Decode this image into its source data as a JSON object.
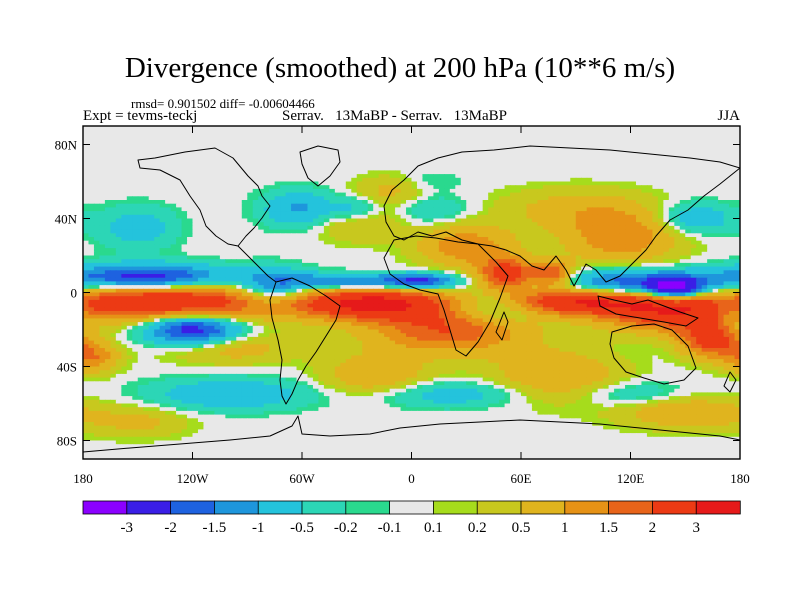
{
  "title": "Divergence (smoothed) at 200 hPa (10**6 m/s)",
  "stats_text": "rmsd= 0.901502 diff= -0.00604466",
  "expt_text": "Expt = tevms-teckj",
  "case_text": "Serrav.   13MaBP - Serrav.   13MaBP",
  "season": "JJA",
  "colors": {
    "palette": [
      "#8b00ff",
      "#3a1ee6",
      "#1e62e0",
      "#1e96dc",
      "#24c3dc",
      "#2cd6b6",
      "#2ad98e",
      "#e8e8e8",
      "#a6dc1c",
      "#c8c81e",
      "#e0b41e",
      "#e69216",
      "#e8641a",
      "#ec3a14",
      "#e61a1a"
    ],
    "coast": "#000000",
    "frame": "#000000"
  },
  "chart_data": {
    "type": "heatmap",
    "title": "Divergence (smoothed) at 200 hPa (10**6 m/s)",
    "variable": "200 hPa divergence difference (smoothed)",
    "units": "10**6 m/s",
    "x_axis": {
      "range": [
        -180,
        180
      ],
      "ticks": [
        -180,
        -120,
        -60,
        0,
        60,
        120,
        180
      ],
      "tick_labels": [
        "180",
        "120W",
        "60W",
        "0",
        "60E",
        "120E",
        "180"
      ]
    },
    "y_axis": {
      "range": [
        -90,
        90
      ],
      "ticks": [
        80,
        40,
        0,
        -40,
        -80
      ],
      "tick_labels": [
        "80N",
        "40N",
        "0",
        "40S",
        "80S"
      ]
    },
    "colorbar": {
      "levels": [
        -3,
        -2,
        -1.5,
        -1,
        -0.5,
        -0.2,
        -0.1,
        0.1,
        0.2,
        0.5,
        1,
        1.5,
        2,
        3
      ],
      "labels": [
        "-3",
        "-2",
        "-1.5",
        "-1",
        "-0.5",
        "-0.2",
        "-0.1",
        "0.1",
        "0.2",
        "0.5",
        "1",
        "1.5",
        "2",
        "3"
      ]
    },
    "features": [
      {
        "lon": -140,
        "lat": -5,
        "value": 3.0,
        "sigma_lon": 55,
        "sigma_lat": 7
      },
      {
        "lon": -20,
        "lat": -6,
        "value": 3.0,
        "sigma_lon": 30,
        "sigma_lat": 6
      },
      {
        "lon": 20,
        "lat": -20,
        "value": 2.0,
        "sigma_lon": 30,
        "sigma_lat": 9
      },
      {
        "lon": 90,
        "lat": -5,
        "value": 2.8,
        "sigma_lon": 30,
        "sigma_lat": 5
      },
      {
        "lon": 140,
        "lat": -12,
        "value": 2.0,
        "sigma_lon": 25,
        "sigma_lat": 7
      },
      {
        "lon": 165,
        "lat": -25,
        "value": 2.5,
        "sigma_lon": 12,
        "sigma_lat": 7
      },
      {
        "lon": 52,
        "lat": 10,
        "value": 2.6,
        "sigma_lon": 10,
        "sigma_lat": 6
      },
      {
        "lon": 77,
        "lat": 10,
        "value": 2.0,
        "sigma_lon": 8,
        "sigma_lat": 5
      },
      {
        "lon": 30,
        "lat": 25,
        "value": 1.4,
        "sigma_lon": 18,
        "sigma_lat": 8
      },
      {
        "lon": 115,
        "lat": 30,
        "value": 1.4,
        "sigma_lon": 22,
        "sigma_lat": 10
      },
      {
        "lon": 90,
        "lat": 45,
        "value": 0.7,
        "sigma_lon": 30,
        "sigma_lat": 8
      },
      {
        "lon": -30,
        "lat": 40,
        "value": 0.8,
        "sigma_lon": 18,
        "sigma_lat": 8
      },
      {
        "lon": -10,
        "lat": 55,
        "value": 0.6,
        "sigma_lon": 15,
        "sigma_lat": 6
      },
      {
        "lon": -100,
        "lat": -30,
        "value": 0.8,
        "sigma_lon": 25,
        "sigma_lat": 6
      },
      {
        "lon": -175,
        "lat": -35,
        "value": 1.4,
        "sigma_lon": 10,
        "sigma_lat": 6
      },
      {
        "lon": -20,
        "lat": -45,
        "value": 1.0,
        "sigma_lon": 20,
        "sigma_lat": 8
      },
      {
        "lon": 80,
        "lat": -45,
        "value": 1.0,
        "sigma_lon": 25,
        "sigma_lat": 10
      },
      {
        "lon": 150,
        "lat": -65,
        "value": 1.0,
        "sigma_lon": 25,
        "sigma_lat": 6
      },
      {
        "lon": -150,
        "lat": -70,
        "value": 0.6,
        "sigma_lon": 20,
        "sigma_lat": 6
      },
      {
        "lon": -145,
        "lat": 8,
        "value": -2.6,
        "sigma_lon": 30,
        "sigma_lat": 5
      },
      {
        "lon": -120,
        "lat": -20,
        "value": -2.6,
        "sigma_lon": 18,
        "sigma_lat": 6
      },
      {
        "lon": -75,
        "lat": 2,
        "value": -1.8,
        "sigma_lon": 15,
        "sigma_lat": 7
      },
      {
        "lon": -35,
        "lat": 6,
        "value": -1.8,
        "sigma_lon": 22,
        "sigma_lat": 3
      },
      {
        "lon": 5,
        "lat": 6,
        "value": -2.2,
        "sigma_lon": 14,
        "sigma_lat": 3
      },
      {
        "lon": 45,
        "lat": -8,
        "value": -1.4,
        "sigma_lon": 18,
        "sigma_lat": 6
      },
      {
        "lon": 125,
        "lat": 5,
        "value": -2.2,
        "sigma_lon": 30,
        "sigma_lat": 5
      },
      {
        "lon": 145,
        "lat": 2,
        "value": -3.0,
        "sigma_lon": 10,
        "sigma_lat": 4
      },
      {
        "lon": -60,
        "lat": 45,
        "value": -1.2,
        "sigma_lon": 15,
        "sigma_lat": 7
      },
      {
        "lon": -30,
        "lat": 45,
        "value": -1.0,
        "sigma_lon": 10,
        "sigma_lat": 5
      },
      {
        "lon": -150,
        "lat": 35,
        "value": -0.8,
        "sigma_lon": 15,
        "sigma_lat": 8
      },
      {
        "lon": 155,
        "lat": 40,
        "value": -1.0,
        "sigma_lon": 15,
        "sigma_lat": 6
      },
      {
        "lon": 10,
        "lat": 45,
        "value": -0.6,
        "sigma_lon": 15,
        "sigma_lat": 6
      },
      {
        "lon": 10,
        "lat": 60,
        "value": -0.3,
        "sigma_lon": 12,
        "sigma_lat": 4
      },
      {
        "lon": 175,
        "lat": -10,
        "value": -1.0,
        "sigma_lon": 10,
        "sigma_lat": 10
      },
      {
        "lon": -100,
        "lat": -55,
        "value": -1.0,
        "sigma_lon": 30,
        "sigma_lat": 6
      },
      {
        "lon": 20,
        "lat": -55,
        "value": -0.8,
        "sigma_lon": 30,
        "sigma_lat": 5
      },
      {
        "lon": 120,
        "lat": -55,
        "value": -0.6,
        "sigma_lon": 20,
        "sigma_lat": 5
      }
    ]
  }
}
